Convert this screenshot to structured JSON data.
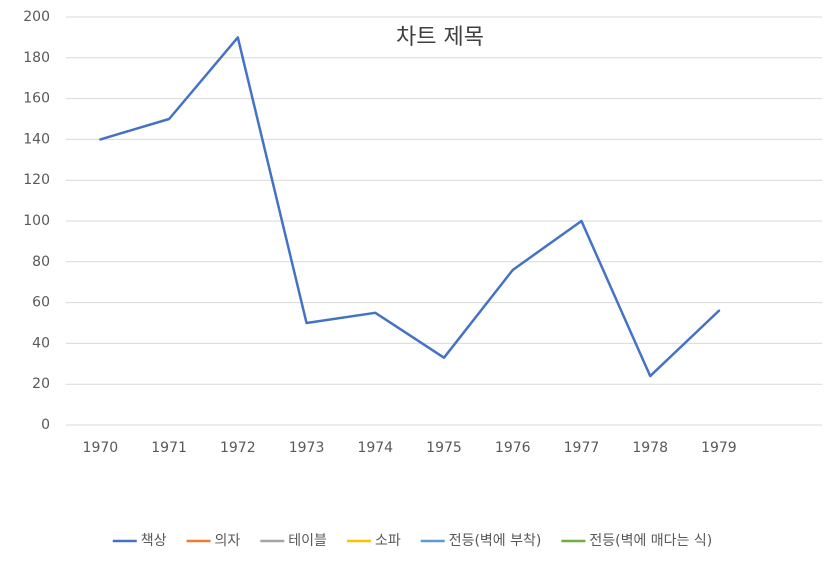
{
  "chart_data": {
    "type": "line",
    "title": "차트 제목",
    "categories": [
      "1970",
      "1971",
      "1972",
      "1973",
      "1974",
      "1975",
      "1976",
      "1977",
      "1978",
      "1979",
      null
    ],
    "series": [
      {
        "name": "책상",
        "color": "#4472c4",
        "values": [
          140,
          150,
          190,
          50,
          55,
          33,
          76,
          100,
          24,
          56,
          null
        ]
      },
      {
        "name": "의자",
        "color": "#ed7d31",
        "values": [
          null,
          null,
          null,
          null,
          null,
          null,
          null,
          null,
          null,
          null,
          null
        ]
      },
      {
        "name": "테이블",
        "color": "#a5a5a5",
        "values": [
          null,
          null,
          null,
          null,
          null,
          null,
          null,
          null,
          null,
          null,
          null
        ]
      },
      {
        "name": "소파",
        "color": "#ffc000",
        "values": [
          null,
          null,
          null,
          null,
          null,
          null,
          null,
          null,
          null,
          null,
          null
        ]
      },
      {
        "name": "전등(벽에 부착)",
        "color": "#5b9bd5",
        "values": [
          null,
          null,
          null,
          null,
          null,
          null,
          null,
          null,
          null,
          null,
          null
        ]
      },
      {
        "name": "전등(벽에 매다는 식)",
        "color": "#70ad47",
        "values": [
          null,
          null,
          null,
          null,
          null,
          null,
          null,
          null,
          null,
          null,
          null
        ]
      }
    ],
    "ylim": [
      0,
      200
    ],
    "yticks": [
      0,
      20,
      40,
      60,
      80,
      100,
      120,
      140,
      160,
      180,
      200
    ],
    "grid": true,
    "legend": "bottom"
  }
}
